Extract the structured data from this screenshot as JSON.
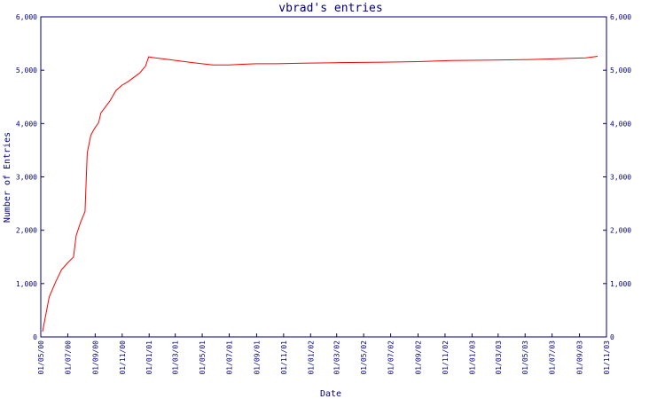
{
  "chart_data": {
    "type": "line",
    "title": "vbrad's entries",
    "xlabel": "Date",
    "ylabel": "Number of Entries",
    "ylim": [
      0,
      6000
    ],
    "yticks": [
      0,
      1000,
      2000,
      3000,
      4000,
      5000,
      6000
    ],
    "ytick_labels": [
      "0",
      "1,000",
      "2,000",
      "3,000",
      "4,000",
      "5,000",
      "6,000"
    ],
    "xlim": [
      "2000-05-01",
      "2003-11-01"
    ],
    "xtick_labels": [
      "01/05/00",
      "01/07/00",
      "01/09/00",
      "01/11/00",
      "01/01/01",
      "01/03/01",
      "01/05/01",
      "01/07/01",
      "01/09/01",
      "01/11/01",
      "01/01/02",
      "01/03/02",
      "01/05/02",
      "01/07/02",
      "01/09/02",
      "01/11/02",
      "01/01/03",
      "01/03/03",
      "01/05/03",
      "01/07/03",
      "01/09/03",
      "01/11/03"
    ],
    "xtick_dates": [
      "2000-05-01",
      "2000-07-01",
      "2000-09-01",
      "2000-11-01",
      "2001-01-01",
      "2001-03-01",
      "2001-05-01",
      "2001-07-01",
      "2001-09-01",
      "2001-11-01",
      "2002-01-01",
      "2002-03-01",
      "2002-05-01",
      "2002-07-01",
      "2002-09-01",
      "2002-11-01",
      "2003-01-01",
      "2003-03-01",
      "2003-05-01",
      "2003-07-01",
      "2003-09-01",
      "2003-11-01"
    ],
    "grid": false,
    "line_color": "#ff0000",
    "axis_color": "#000080",
    "series": [
      {
        "x": [
          "2000-05-05",
          "2000-05-20",
          "2000-06-04",
          "2000-06-17",
          "2000-07-01",
          "2000-07-14",
          "2000-07-20",
          "2000-07-30",
          "2000-08-09",
          "2000-08-14",
          "2000-08-22",
          "2000-08-30",
          "2000-09-09",
          "2000-09-14",
          "2000-10-04",
          "2000-10-18",
          "2000-11-01",
          "2000-11-15",
          "2000-12-11",
          "2000-12-24",
          "2000-12-31",
          "2001-01-07",
          "2001-02-24",
          "2001-04-11",
          "2001-05-25",
          "2001-06-30",
          "2001-07-31",
          "2001-08-31",
          "2001-10-15",
          "2001-12-15",
          "2002-03-01",
          "2002-06-15",
          "2002-09-01",
          "2002-11-15",
          "2003-02-15",
          "2003-05-15",
          "2003-08-01",
          "2003-09-15",
          "2003-10-12"
        ],
        "y": [
          100,
          750,
          1040,
          1260,
          1390,
          1500,
          1900,
          2150,
          2350,
          3450,
          3780,
          3900,
          4020,
          4200,
          4420,
          4620,
          4720,
          4790,
          4950,
          5080,
          5250,
          5240,
          5190,
          5140,
          5100,
          5100,
          5110,
          5120,
          5120,
          5130,
          5140,
          5150,
          5160,
          5180,
          5190,
          5200,
          5220,
          5230,
          5260
        ]
      }
    ]
  }
}
